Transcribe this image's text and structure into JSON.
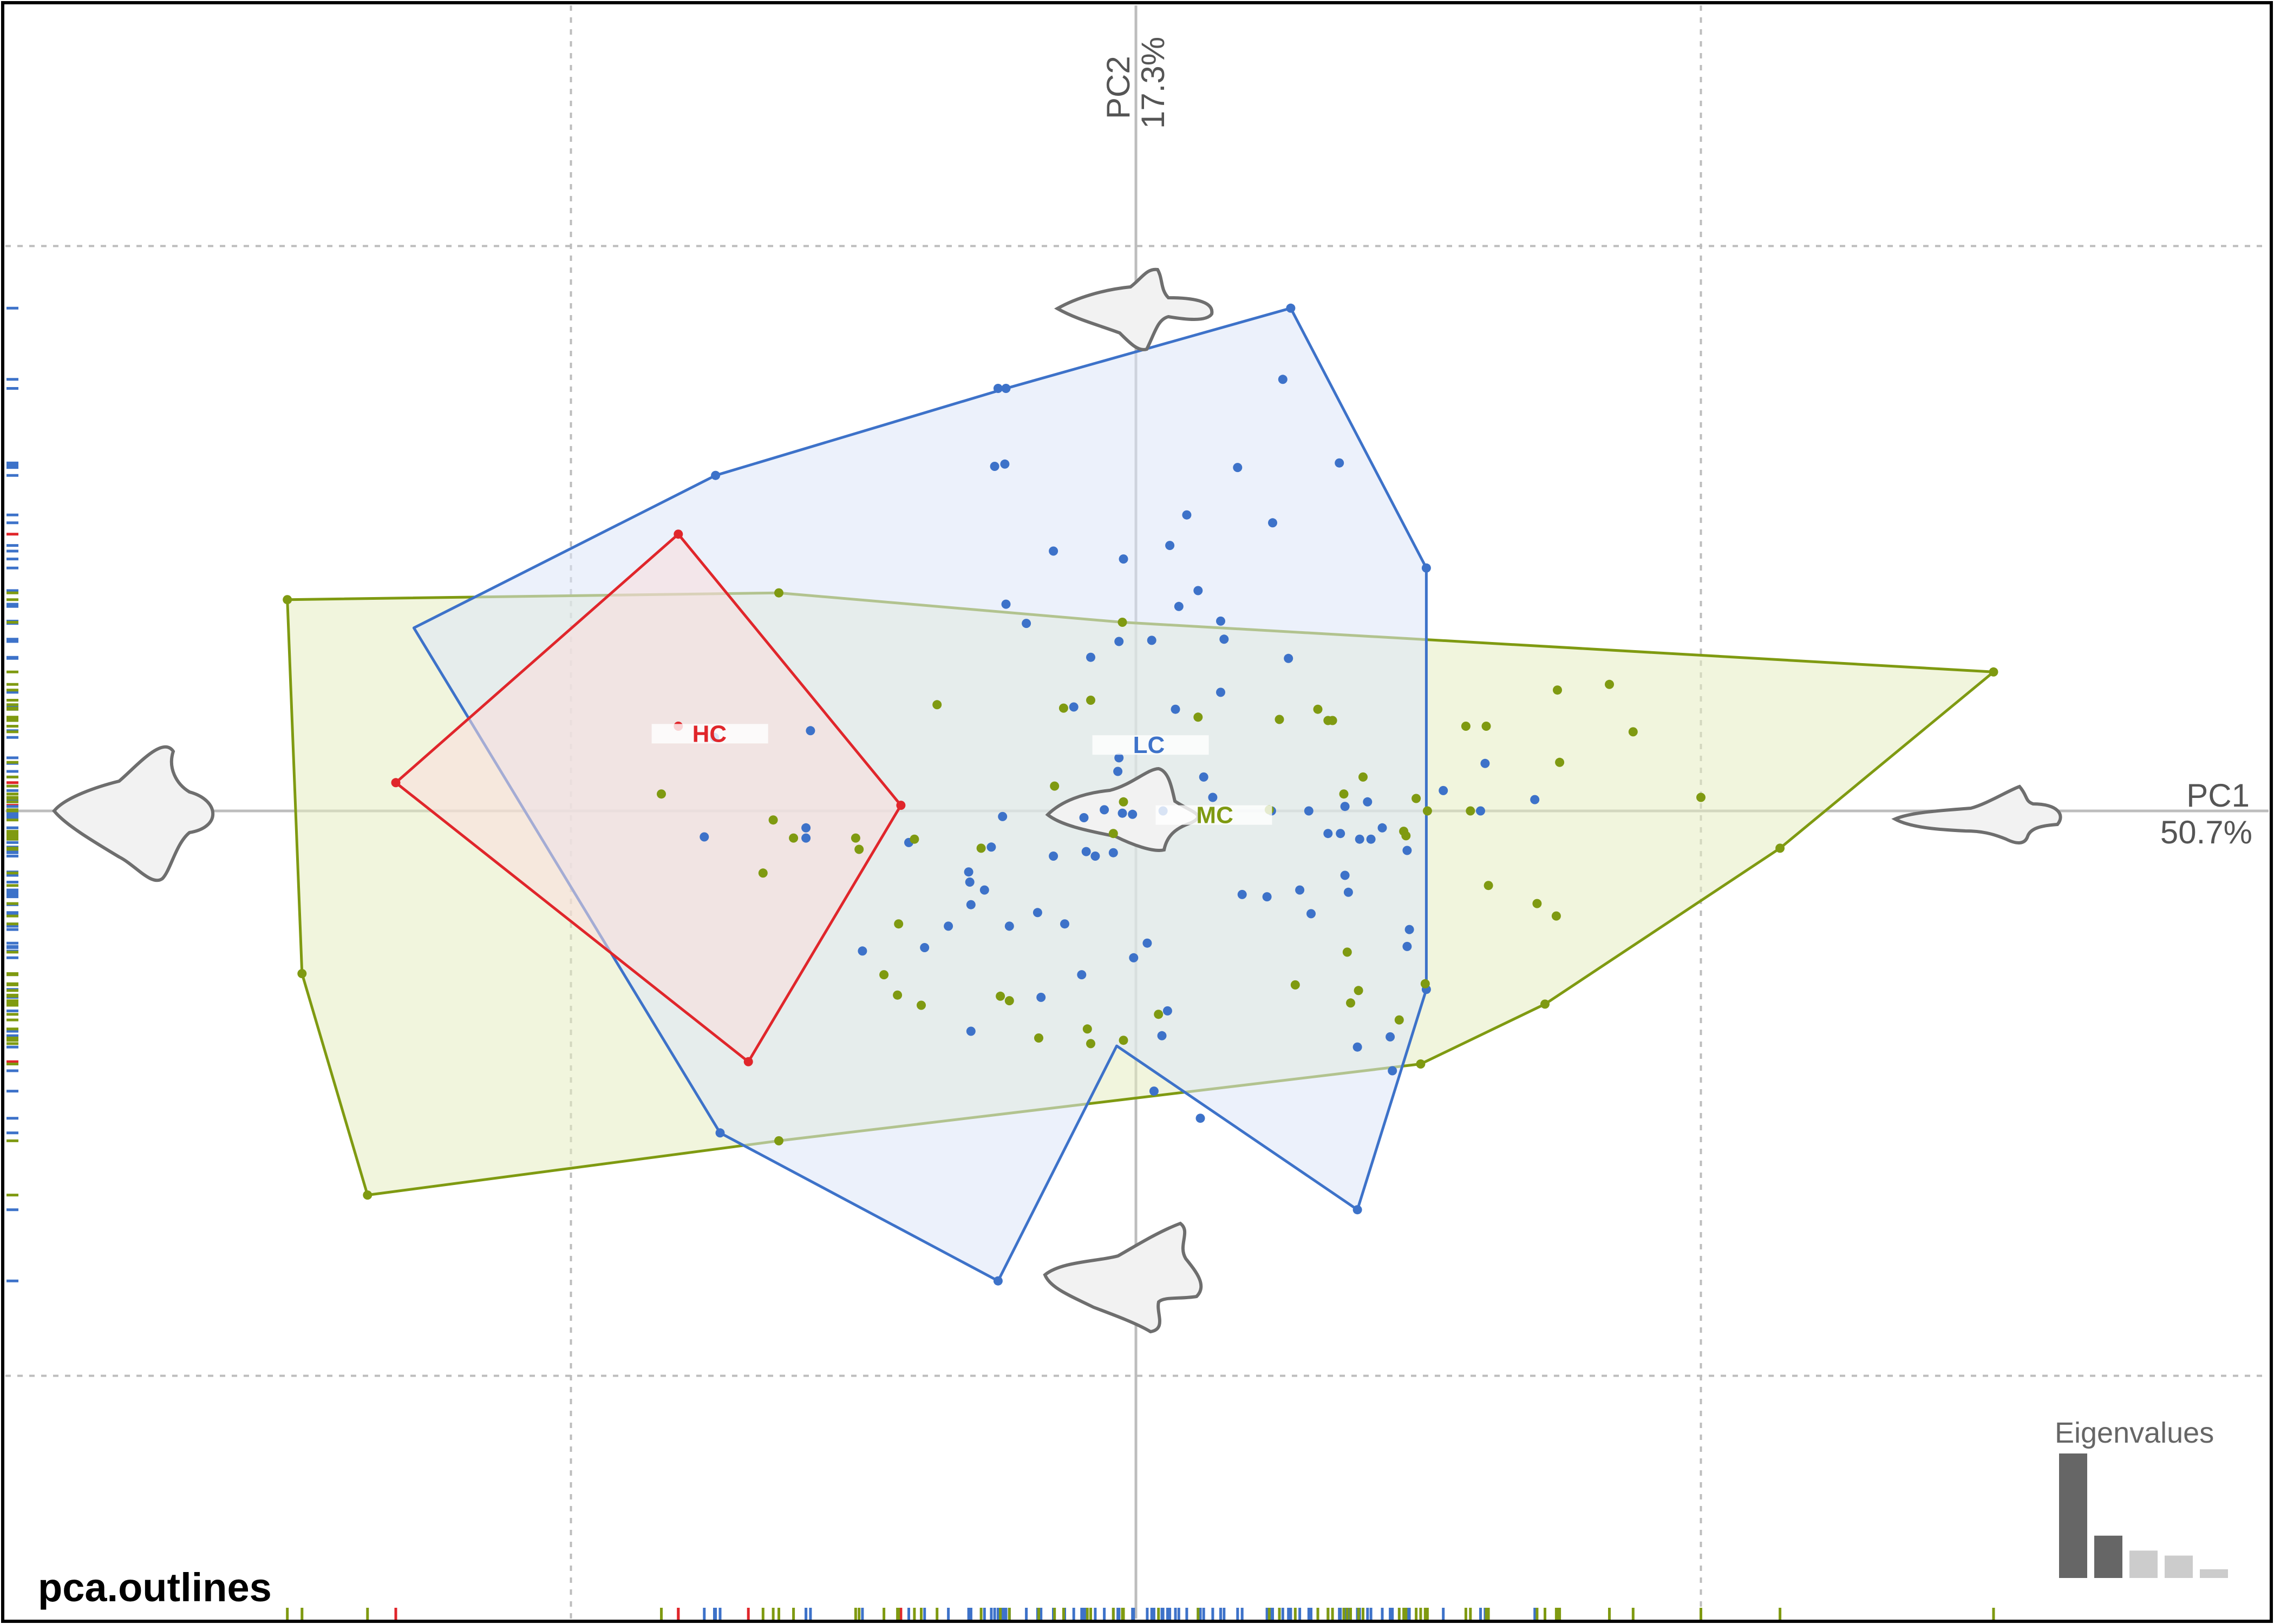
{
  "title": "pca.outlines",
  "eigen_title": "Eigenvalues",
  "axes": {
    "pc1_name": "PC1",
    "pc1_pct": "50.7%",
    "pc2_name": "PC2",
    "pc2_pct": "17.3%"
  },
  "chart_data": {
    "type": "scatter",
    "xlim": [
      -0.075,
      0.075
    ],
    "ylim": [
      -0.06,
      0.0535
    ],
    "grid_ticks": {
      "x": [
        -0.05,
        0,
        0.05
      ],
      "y": [
        -0.05,
        0,
        0.05
      ]
    },
    "groups": [
      {
        "name": "HC",
        "color": "#e0262b",
        "fill": "#f9dcdd",
        "label_at": [
          -0.0395,
          0.0065
        ],
        "hull": [
          [
            -0.0655,
            0.0025
          ],
          [
            -0.0405,
            0.0245
          ],
          [
            -0.0208,
            0.0005
          ],
          [
            -0.0343,
            -0.0222
          ]
        ],
        "points": [
          [
            -0.0655,
            0.0025
          ],
          [
            -0.0405,
            0.0245
          ],
          [
            -0.0208,
            0.0005
          ],
          [
            -0.0343,
            -0.0222
          ],
          [
            -0.0405,
            0.0075
          ]
        ]
      },
      {
        "name": "LC",
        "color": "#3d72c9",
        "fill": "#dde6f7",
        "label_at": [
          -0.0005,
          0.0055
        ],
        "hull": [
          [
            -0.0017,
            -0.0208
          ],
          [
            -0.0122,
            -0.0416
          ],
          [
            -0.0368,
            -0.0285
          ],
          [
            -0.0639,
            0.0162
          ],
          [
            -0.0372,
            0.0297
          ],
          [
            -0.0115,
            0.0374
          ],
          [
            0.0137,
            0.0445
          ],
          [
            0.0257,
            0.0215
          ],
          [
            0.0257,
            -0.0158
          ],
          [
            0.0196,
            -0.0353
          ]
        ],
        "points": [
          [
            -0.0368,
            -0.0285
          ],
          [
            -0.0372,
            0.0297
          ],
          [
            -0.0122,
            0.0374
          ],
          [
            -0.0115,
            0.0374
          ],
          [
            0.0137,
            0.0445
          ],
          [
            0.0257,
            0.0215
          ],
          [
            0.0257,
            -0.0158
          ],
          [
            0.0196,
            -0.0353
          ],
          [
            -0.0122,
            -0.0416
          ],
          [
            0.013,
            0.0382
          ],
          [
            0.018,
            0.0308
          ],
          [
            0.009,
            0.0304
          ],
          [
            0.0045,
            0.0262
          ],
          [
            -0.0125,
            0.0305
          ],
          [
            -0.0116,
            0.0307
          ],
          [
            0.0121,
            0.0255
          ],
          [
            -0.0011,
            0.0223
          ],
          [
            -0.0073,
            0.023
          ],
          [
            0.003,
            0.0235
          ],
          [
            0.0055,
            0.0195
          ],
          [
            0.0038,
            0.0181
          ],
          [
            -0.0115,
            0.0183
          ],
          [
            -0.0097,
            0.0166
          ],
          [
            0.0014,
            0.0151
          ],
          [
            0.0075,
            0.0168
          ],
          [
            0.0078,
            0.0152
          ],
          [
            0.0135,
            0.0135
          ],
          [
            0.0075,
            0.0105
          ],
          [
            0.0035,
            0.009
          ],
          [
            -0.004,
            0.0136
          ],
          [
            -0.0015,
            0.015
          ],
          [
            -0.0055,
            0.0092
          ],
          [
            -0.0015,
            0.0047
          ],
          [
            0.006,
            0.003
          ],
          [
            0.0068,
            0.0012
          ],
          [
            -0.0016,
            0.0035
          ],
          [
            -0.0028,
            0.0001
          ],
          [
            -0.0012,
            -0.0002
          ],
          [
            0.0024,
            0.0
          ],
          [
            0.012,
            0.0
          ],
          [
            0.0153,
            0.0
          ],
          [
            0.0185,
            0.0004
          ],
          [
            0.0205,
            0.0008
          ],
          [
            0.0272,
            0.0018
          ],
          [
            0.0309,
            0.0042
          ],
          [
            0.0353,
            0.001
          ],
          [
            0.0305,
            0.0
          ],
          [
            -0.0044,
            -0.0036
          ],
          [
            -0.0046,
            -0.0006
          ],
          [
            -0.0003,
            -0.0003
          ],
          [
            -0.002,
            -0.0037
          ],
          [
            -0.0036,
            -0.004
          ],
          [
            -0.0073,
            -0.004
          ],
          [
            -0.0118,
            -0.0005
          ],
          [
            -0.0128,
            -0.0032
          ],
          [
            -0.0148,
            -0.0054
          ],
          [
            -0.0147,
            -0.0063
          ],
          [
            -0.0146,
            -0.0083
          ],
          [
            -0.0134,
            -0.007
          ],
          [
            -0.0166,
            -0.0102
          ],
          [
            -0.0112,
            -0.0102
          ],
          [
            -0.0063,
            -0.01
          ],
          [
            -0.0048,
            -0.0145
          ],
          [
            -0.0002,
            -0.013
          ],
          [
            0.001,
            -0.0117
          ],
          [
            0.0094,
            -0.0074
          ],
          [
            0.0116,
            -0.0076
          ],
          [
            0.0145,
            -0.007
          ],
          [
            0.0188,
            -0.0072
          ],
          [
            0.0198,
            -0.0025
          ],
          [
            0.0181,
            -0.002
          ],
          [
            0.0218,
            -0.0015
          ],
          [
            0.0185,
            -0.0057
          ],
          [
            0.0208,
            -0.0025
          ],
          [
            0.017,
            -0.002
          ],
          [
            0.0155,
            -0.0091
          ],
          [
            0.024,
            -0.0035
          ],
          [
            0.0242,
            -0.0105
          ],
          [
            0.024,
            -0.012
          ],
          [
            0.0225,
            -0.02
          ],
          [
            0.0196,
            -0.0209
          ],
          [
            0.0227,
            -0.023
          ],
          [
            0.0016,
            -0.0248
          ],
          [
            0.0023,
            -0.0199
          ],
          [
            0.0057,
            -0.0272
          ],
          [
            0.0028,
            -0.0177
          ],
          [
            -0.0087,
            -0.009
          ],
          [
            -0.0084,
            -0.0165
          ],
          [
            -0.0146,
            -0.0195
          ],
          [
            -0.0187,
            -0.0121
          ],
          [
            -0.0242,
            -0.0124
          ],
          [
            -0.0292,
            -0.0024
          ],
          [
            -0.0201,
            -0.0028
          ],
          [
            -0.0292,
            -0.0015
          ],
          [
            -0.0382,
            -0.0023
          ],
          [
            -0.0373,
            0.0065
          ],
          [
            -0.0288,
            0.0071
          ]
        ]
      },
      {
        "name": "MC",
        "color": "#7f9a11",
        "fill": "#e6ecc1",
        "label_at": [
          0.0051,
          -0.0007
        ],
        "hull": [
          [
            -0.0751,
            0.0187
          ],
          [
            -0.0316,
            0.0193
          ],
          [
            -0.0012,
            0.0167
          ],
          [
            0.0759,
            0.0123
          ],
          [
            0.057,
            -0.0033
          ],
          [
            0.0362,
            -0.0171
          ],
          [
            0.0252,
            -0.0224
          ],
          [
            -0.0316,
            -0.0292
          ],
          [
            -0.068,
            -0.034
          ],
          [
            -0.0738,
            -0.0144
          ]
        ],
        "points": [
          [
            -0.0751,
            0.0187
          ],
          [
            -0.0316,
            0.0193
          ],
          [
            -0.0012,
            0.0167
          ],
          [
            0.0759,
            0.0123
          ],
          [
            0.057,
            -0.0033
          ],
          [
            0.0362,
            -0.0171
          ],
          [
            0.0252,
            -0.0224
          ],
          [
            -0.0316,
            -0.0292
          ],
          [
            -0.068,
            -0.034
          ],
          [
            -0.0738,
            -0.0144
          ],
          [
            0.0419,
            0.0112
          ],
          [
            0.0373,
            0.0107
          ],
          [
            0.031,
            0.0075
          ],
          [
            0.0292,
            0.0075
          ],
          [
            0.0248,
            0.0011
          ],
          [
            0.0258,
            0.0
          ],
          [
            0.0296,
            0.0
          ],
          [
            0.044,
            0.007
          ],
          [
            0.0375,
            0.0043
          ],
          [
            0.05,
            0.0012
          ],
          [
            0.0372,
            -0.0093
          ],
          [
            0.0355,
            -0.0082
          ],
          [
            0.0312,
            -0.0066
          ],
          [
            0.0237,
            -0.0018
          ],
          [
            0.0239,
            -0.0022
          ],
          [
            0.0184,
            0.0015
          ],
          [
            0.0201,
            0.003
          ],
          [
            0.0127,
            0.0081
          ],
          [
            0.017,
            0.008
          ],
          [
            0.0174,
            0.008
          ],
          [
            0.0055,
            0.0083
          ],
          [
            0.0118,
            0.0001
          ],
          [
            -0.004,
            0.0098
          ],
          [
            -0.0176,
            0.0094
          ],
          [
            -0.0064,
            0.0091
          ],
          [
            0.0161,
            0.009
          ],
          [
            -0.0072,
            0.0022
          ],
          [
            -0.0011,
            0.0008
          ],
          [
            -0.002,
            -0.002
          ],
          [
            -0.0137,
            -0.0033
          ],
          [
            -0.0196,
            -0.0025
          ],
          [
            -0.0248,
            -0.0024
          ],
          [
            -0.0303,
            -0.0024
          ],
          [
            -0.0245,
            -0.0034
          ],
          [
            -0.0321,
            -0.0008
          ],
          [
            -0.042,
            0.0015
          ],
          [
            -0.033,
            -0.0055
          ],
          [
            -0.021,
            -0.01
          ],
          [
            -0.0223,
            -0.0145
          ],
          [
            -0.0211,
            -0.0163
          ],
          [
            -0.019,
            -0.0172
          ],
          [
            -0.012,
            -0.0164
          ],
          [
            -0.0112,
            -0.0168
          ],
          [
            -0.0043,
            -0.0193
          ],
          [
            0.0141,
            -0.0154
          ],
          [
            0.0197,
            -0.0159
          ],
          [
            0.002,
            -0.018
          ],
          [
            0.019,
            -0.017
          ],
          [
            0.0233,
            -0.0185
          ],
          [
            0.0256,
            -0.0153
          ],
          [
            -0.0086,
            -0.0201
          ],
          [
            -0.004,
            -0.0206
          ],
          [
            0.0187,
            -0.0125
          ],
          [
            -0.0011,
            -0.0203
          ]
        ]
      }
    ],
    "eigenvalues": [
      1.0,
      0.34,
      0.22,
      0.18,
      0.07
    ],
    "eigen_colors": [
      "#666666",
      "#666666",
      "#cccccc",
      "#cccccc",
      "#cccccc"
    ],
    "mean_shapes": [
      "shape-pc1-negative",
      "shape-pc1-positive",
      "shape-pc2-positive",
      "shape-pc2-negative",
      "shape-origin"
    ]
  }
}
